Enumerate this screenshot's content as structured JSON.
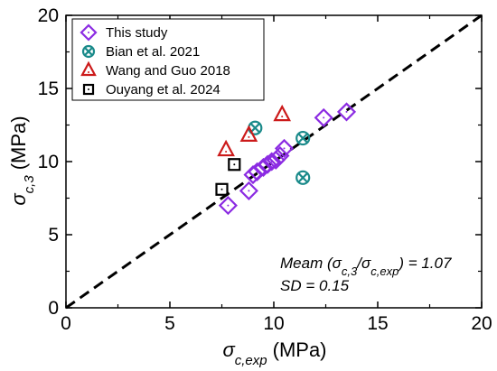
{
  "chart_data": {
    "type": "scatter",
    "xlabel": {
      "base": "σ",
      "sub": "c,exp",
      "unit": "(MPa)"
    },
    "ylabel": {
      "base": "σ",
      "sub": "c,3",
      "unit": "(MPa)"
    },
    "xlim": [
      0,
      20
    ],
    "ylim": [
      0,
      20
    ],
    "xticks": [
      "0",
      "5",
      "10",
      "15",
      "20"
    ],
    "yticks": [
      "0",
      "5",
      "10",
      "15",
      "20"
    ],
    "grid": false,
    "legend_position": "top-left",
    "reference_line": {
      "style": "dashed",
      "color": "#000000",
      "from": [
        0,
        0
      ],
      "to": [
        20,
        20
      ]
    },
    "series": [
      {
        "name": "This study",
        "marker": "diamond",
        "color": "#8B2BE2",
        "points": [
          [
            7.8,
            7.0
          ],
          [
            8.8,
            8.0
          ],
          [
            9.0,
            9.1
          ],
          [
            9.2,
            9.3
          ],
          [
            9.5,
            9.6
          ],
          [
            9.7,
            9.8
          ],
          [
            9.9,
            10.0
          ],
          [
            10.1,
            10.1
          ],
          [
            10.3,
            10.4
          ],
          [
            10.5,
            10.9
          ],
          [
            12.4,
            13.0
          ],
          [
            13.5,
            13.4
          ]
        ]
      },
      {
        "name": "Bian et al. 2021",
        "marker": "circle-x",
        "color": "#1A8A8A",
        "points": [
          [
            9.1,
            12.3
          ],
          [
            11.4,
            11.6
          ],
          [
            11.4,
            8.9
          ]
        ]
      },
      {
        "name": "Wang and Guo 2018",
        "marker": "triangle",
        "color": "#CC1A1A",
        "points": [
          [
            7.7,
            10.8
          ],
          [
            8.8,
            11.8
          ],
          [
            10.4,
            13.2
          ]
        ]
      },
      {
        "name": "Ouyang et al. 2024",
        "marker": "square",
        "color": "#000000",
        "points": [
          [
            7.5,
            8.1
          ],
          [
            8.1,
            9.8
          ]
        ]
      }
    ],
    "annotations": {
      "mean": {
        "prefix": "Meam (",
        "num_base": "σ",
        "num_sub": "c,3",
        "slash": "/",
        "den_base": "σ",
        "den_sub": "c,exp",
        "suffix": ") = 1.07"
      },
      "sd": "SD = 0.15"
    }
  }
}
